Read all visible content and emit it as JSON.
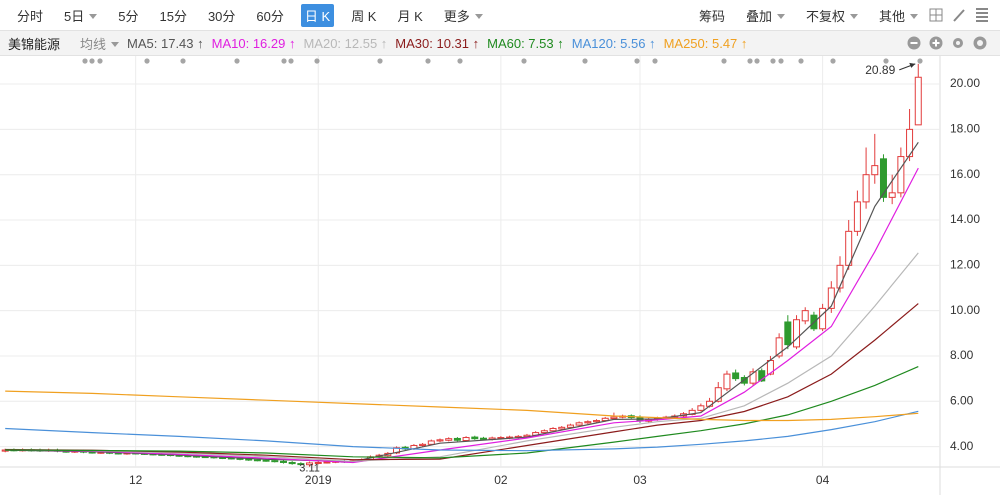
{
  "toolbar": {
    "periods": [
      "分时",
      "5日",
      "5分",
      "15分",
      "30分",
      "60分",
      "日 K",
      "周 K",
      "月 K",
      "更多"
    ],
    "tools": [
      "筹码",
      "叠加",
      "不复权",
      "其他"
    ]
  },
  "chart_data": {
    "type": "candlestick",
    "title": "美锦能源",
    "ma_label": "均线",
    "up_color": "#e23b3b",
    "down_color": "#2e9a2e",
    "grid": true,
    "categories": [
      null,
      null,
      null,
      null,
      null,
      null,
      null,
      null,
      null,
      null,
      null,
      null,
      null,
      null,
      null,
      "12",
      null,
      null,
      null,
      null,
      null,
      null,
      null,
      null,
      null,
      null,
      null,
      null,
      null,
      null,
      null,
      null,
      null,
      null,
      null,
      null,
      "2019",
      null,
      null,
      null,
      null,
      null,
      null,
      null,
      null,
      null,
      null,
      null,
      null,
      null,
      null,
      null,
      null,
      null,
      null,
      null,
      null,
      "02",
      null,
      null,
      null,
      null,
      null,
      null,
      null,
      null,
      null,
      null,
      null,
      null,
      null,
      null,
      null,
      "03",
      null,
      null,
      null,
      null,
      null,
      null,
      null,
      null,
      null,
      null,
      null,
      null,
      null,
      null,
      null,
      null,
      null,
      null,
      null,
      null,
      "04",
      null,
      null,
      null,
      null,
      null,
      null,
      null,
      null,
      null,
      null,
      null
    ],
    "open": [
      3.8,
      3.86,
      3.83,
      3.86,
      3.85,
      3.82,
      3.85,
      3.8,
      3.77,
      3.8,
      3.76,
      3.73,
      3.75,
      3.72,
      3.69,
      3.72,
      3.7,
      3.68,
      3.66,
      3.65,
      3.62,
      3.6,
      3.58,
      3.56,
      3.55,
      3.52,
      3.5,
      3.48,
      3.45,
      3.42,
      3.4,
      3.38,
      3.35,
      3.3,
      3.25,
      3.2,
      3.27,
      3.3,
      3.32,
      3.36,
      3.33,
      3.38,
      3.42,
      3.55,
      3.6,
      3.72,
      3.97,
      3.9,
      4.05,
      4.1,
      4.25,
      4.28,
      4.36,
      4.27,
      4.42,
      4.37,
      4.32,
      4.36,
      4.38,
      4.4,
      4.44,
      4.5,
      4.62,
      4.7,
      4.78,
      4.85,
      4.95,
      5.05,
      5.1,
      5.15,
      5.24,
      5.3,
      5.36,
      5.3,
      5.12,
      5.2,
      5.25,
      5.3,
      5.35,
      5.42,
      5.6,
      5.78,
      6.0,
      6.55,
      7.25,
      7.05,
      6.8,
      7.35,
      7.2,
      8.0,
      9.5,
      8.4,
      9.55,
      9.8,
      9.2,
      10.1,
      11.0,
      12.0,
      13.5,
      14.8,
      16.0,
      16.7,
      15.0,
      15.2,
      16.8,
      18.2
    ],
    "high": [
      3.91,
      3.92,
      3.92,
      3.92,
      3.91,
      3.91,
      3.91,
      3.86,
      3.86,
      3.86,
      3.82,
      3.81,
      3.81,
      3.78,
      3.78,
      3.78,
      3.76,
      3.74,
      3.72,
      3.71,
      3.68,
      3.66,
      3.64,
      3.62,
      3.61,
      3.58,
      3.56,
      3.54,
      3.51,
      3.48,
      3.46,
      3.44,
      3.41,
      3.36,
      3.31,
      3.34,
      3.36,
      3.38,
      3.41,
      3.42,
      3.44,
      3.48,
      3.61,
      3.68,
      3.76,
      4.01,
      4.03,
      4.11,
      4.16,
      4.31,
      4.36,
      4.41,
      4.42,
      4.46,
      4.48,
      4.43,
      4.44,
      4.46,
      4.48,
      4.51,
      4.56,
      4.68,
      4.76,
      4.86,
      4.91,
      5.01,
      5.11,
      5.16,
      5.21,
      5.31,
      5.5,
      5.41,
      5.42,
      5.38,
      5.26,
      5.32,
      5.36,
      5.42,
      5.52,
      5.7,
      5.9,
      6.15,
      6.85,
      7.35,
      7.4,
      7.15,
      7.45,
      7.45,
      8.0,
      9.0,
      9.8,
      9.8,
      10.15,
      9.95,
      10.3,
      11.3,
      12.4,
      14.0,
      15.3,
      17.2,
      17.8,
      16.9,
      16.0,
      17.2,
      18.9,
      20.89
    ],
    "low": [
      3.75,
      3.79,
      3.78,
      3.78,
      3.77,
      3.77,
      3.75,
      3.73,
      3.72,
      3.71,
      3.69,
      3.68,
      3.67,
      3.65,
      3.64,
      3.65,
      3.63,
      3.61,
      3.6,
      3.57,
      3.55,
      3.53,
      3.51,
      3.5,
      3.47,
      3.45,
      3.43,
      3.4,
      3.37,
      3.35,
      3.33,
      3.3,
      3.25,
      3.2,
      3.17,
      3.11,
      3.22,
      3.25,
      3.27,
      3.28,
      3.28,
      3.33,
      3.37,
      3.5,
      3.55,
      3.67,
      3.85,
      3.85,
      4.0,
      4.05,
      4.2,
      4.23,
      4.23,
      4.22,
      4.3,
      4.27,
      4.27,
      4.31,
      4.33,
      4.35,
      4.39,
      4.45,
      4.57,
      4.65,
      4.73,
      4.8,
      4.9,
      5.0,
      5.05,
      5.1,
      5.19,
      5.25,
      5.23,
      5.05,
      5.05,
      5.14,
      5.2,
      5.24,
      5.3,
      5.38,
      5.55,
      5.72,
      5.95,
      6.45,
      6.9,
      6.7,
      6.7,
      6.85,
      7.15,
      7.9,
      8.3,
      8.3,
      9.4,
      9.1,
      9.1,
      9.9,
      10.8,
      11.8,
      13.3,
      14.5,
      15.6,
      14.8,
      14.7,
      15.0,
      16.6,
      18.2
    ],
    "close": [
      3.85,
      3.84,
      3.86,
      3.83,
      3.82,
      3.85,
      3.8,
      3.78,
      3.8,
      3.76,
      3.74,
      3.75,
      3.72,
      3.7,
      3.72,
      3.7,
      3.68,
      3.66,
      3.65,
      3.62,
      3.6,
      3.58,
      3.56,
      3.55,
      3.52,
      3.5,
      3.48,
      3.45,
      3.42,
      3.4,
      3.38,
      3.35,
      3.3,
      3.25,
      3.22,
      3.28,
      3.3,
      3.32,
      3.35,
      3.33,
      3.38,
      3.42,
      3.55,
      3.62,
      3.7,
      3.95,
      3.9,
      4.05,
      4.1,
      4.25,
      4.3,
      4.35,
      4.28,
      4.4,
      4.35,
      4.32,
      4.38,
      4.4,
      4.42,
      4.45,
      4.5,
      4.62,
      4.7,
      4.8,
      4.85,
      4.95,
      5.05,
      5.1,
      5.15,
      5.25,
      5.3,
      5.35,
      5.28,
      5.15,
      5.2,
      5.25,
      5.3,
      5.35,
      5.45,
      5.6,
      5.8,
      6.0,
      6.6,
      7.2,
      7.0,
      6.8,
      7.3,
      6.9,
      7.8,
      8.8,
      8.5,
      9.6,
      10.0,
      9.2,
      10.1,
      11.0,
      12.0,
      13.5,
      14.8,
      16.0,
      16.4,
      15.0,
      15.2,
      16.8,
      18.0,
      20.3
    ],
    "max_label": "20.89",
    "min_label": "3.11",
    "series": [
      {
        "legend": "MA5: 17.43 ↑",
        "color": "#555555",
        "x": [
          0,
          10,
          20,
          30,
          40,
          50,
          60,
          70,
          75,
          80,
          85,
          90,
          95,
          100,
          105
        ],
        "values": [
          3.84,
          3.78,
          3.63,
          3.44,
          3.34,
          4.15,
          4.42,
          5.2,
          5.22,
          5.5,
          6.95,
          8.4,
          10.2,
          14.6,
          17.43
        ]
      },
      {
        "legend": "MA10: 16.29 ↑",
        "color": "#e01fe0",
        "x": [
          0,
          10,
          20,
          30,
          40,
          50,
          60,
          70,
          75,
          80,
          85,
          90,
          95,
          100,
          105
        ],
        "values": [
          3.86,
          3.8,
          3.66,
          3.49,
          3.3,
          3.85,
          4.38,
          5.05,
          5.18,
          5.35,
          6.4,
          7.8,
          9.3,
          12.6,
          16.29
        ]
      },
      {
        "legend": "MA20: 12.55 ↑",
        "color": "#b8b8b8",
        "x": [
          0,
          10,
          20,
          30,
          40,
          50,
          60,
          70,
          75,
          80,
          85,
          90,
          95,
          100,
          105
        ],
        "values": [
          3.88,
          3.82,
          3.72,
          3.56,
          3.35,
          3.55,
          4.25,
          4.85,
          5.1,
          5.25,
          5.8,
          6.8,
          8.0,
          10.2,
          12.55
        ]
      },
      {
        "legend": "MA30: 10.31 ↑",
        "color": "#8b1c1c",
        "x": [
          0,
          10,
          20,
          30,
          40,
          50,
          60,
          70,
          75,
          80,
          85,
          90,
          95,
          100,
          105
        ],
        "values": [
          3.87,
          3.84,
          3.76,
          3.62,
          3.42,
          3.45,
          4.05,
          4.65,
          4.95,
          5.15,
          5.55,
          6.2,
          7.2,
          8.7,
          10.31
        ]
      },
      {
        "legend": "MA60: 7.53 ↑",
        "color": "#1f8a1f",
        "x": [
          0,
          10,
          20,
          30,
          40,
          50,
          60,
          70,
          75,
          80,
          85,
          90,
          95,
          100,
          105
        ],
        "values": [
          3.85,
          3.83,
          3.8,
          3.72,
          3.55,
          3.5,
          3.72,
          4.2,
          4.45,
          4.7,
          5.0,
          5.4,
          6.0,
          6.7,
          7.53
        ]
      },
      {
        "legend": "MA120: 5.56 ↑",
        "color": "#4a90d9",
        "x": [
          0,
          10,
          20,
          30,
          40,
          50,
          60,
          70,
          75,
          80,
          85,
          90,
          95,
          100,
          105
        ],
        "values": [
          4.8,
          4.62,
          4.45,
          4.25,
          4.0,
          3.85,
          3.82,
          3.9,
          3.98,
          4.1,
          4.25,
          4.45,
          4.75,
          5.1,
          5.56
        ]
      },
      {
        "legend": "MA250: 5.47 ↑",
        "color": "#f0a020",
        "x": [
          0,
          10,
          20,
          30,
          40,
          50,
          60,
          70,
          75,
          80,
          85,
          90,
          95,
          100,
          105
        ],
        "values": [
          6.45,
          6.35,
          6.2,
          6.05,
          5.9,
          5.75,
          5.6,
          5.35,
          5.28,
          5.2,
          5.15,
          5.15,
          5.2,
          5.32,
          5.47
        ]
      }
    ],
    "xlim": [
      -0.6,
      107.5
    ],
    "ylim": [
      3.1,
      21.15
    ],
    "yticks": [
      {
        "value": 4,
        "label": "4.00"
      },
      {
        "value": 6,
        "label": "6.00"
      },
      {
        "value": 8,
        "label": "8.00"
      },
      {
        "value": 10,
        "label": "10.00"
      },
      {
        "value": 12,
        "label": "12.00"
      },
      {
        "value": 14,
        "label": "14.00"
      },
      {
        "value": 16,
        "label": "16.00"
      },
      {
        "value": 18,
        "label": "18.00"
      },
      {
        "value": 20,
        "label": "20.00"
      }
    ]
  }
}
